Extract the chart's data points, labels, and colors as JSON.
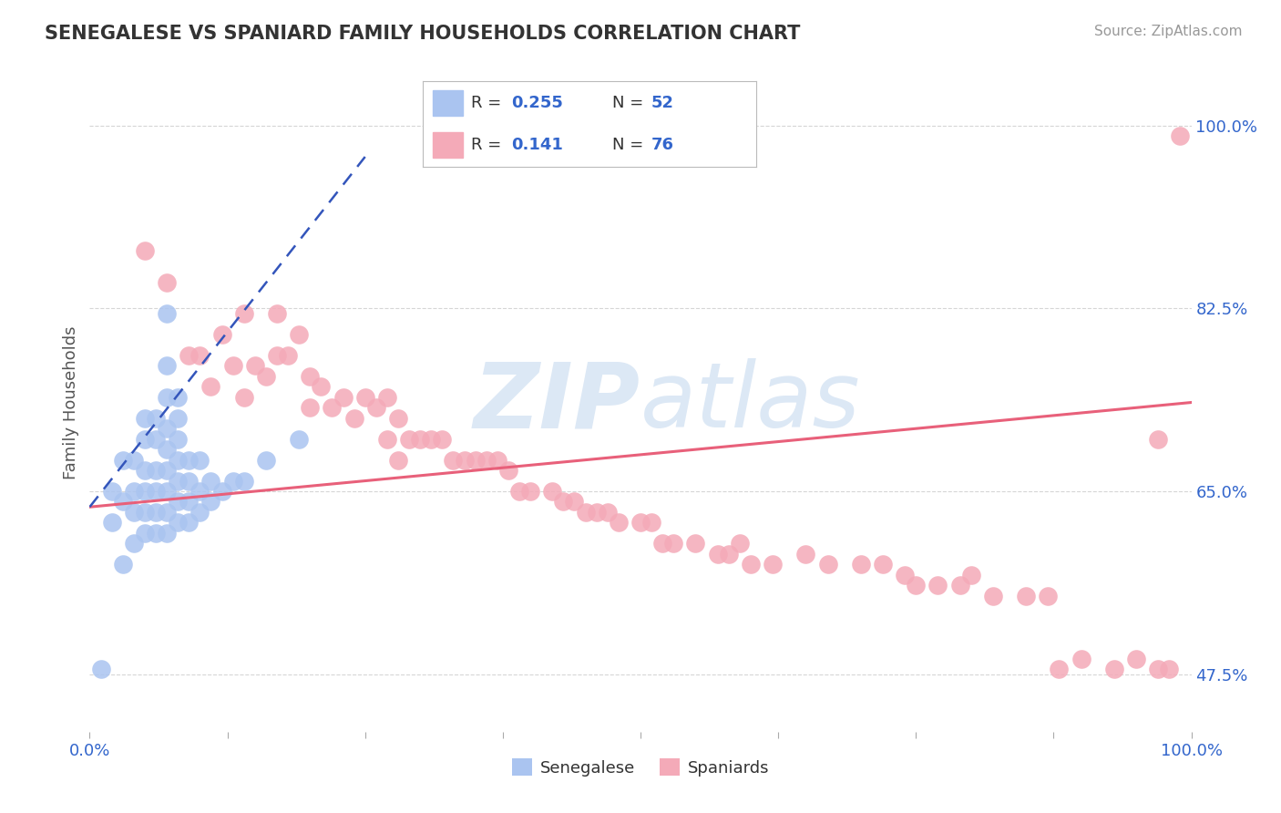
{
  "title": "SENEGALESE VS SPANIARD FAMILY HOUSEHOLDS CORRELATION CHART",
  "source_text": "Source: ZipAtlas.com",
  "ylabel": "Family Households",
  "xlim": [
    0.0,
    1.0
  ],
  "ylim": [
    0.42,
    1.05
  ],
  "senegalese_R": 0.255,
  "senegalese_N": 52,
  "spaniards_R": 0.141,
  "spaniards_N": 76,
  "senegalese_color": "#aac4f0",
  "spaniards_color": "#f4aab8",
  "senegalese_line_color": "#3355bb",
  "spaniards_line_color": "#e8607a",
  "watermark_color": "#dce8f5",
  "background_color": "#ffffff",
  "grid_color": "#cccccc",
  "title_color": "#333333",
  "source_color": "#999999",
  "tick_color": "#3366cc",
  "ylabel_color": "#555555",
  "ytick_positions": [
    0.475,
    0.65,
    0.825,
    1.0
  ],
  "ytick_labels": [
    "47.5%",
    "65.0%",
    "82.5%",
    "100.0%"
  ],
  "senegalese_x": [
    0.01,
    0.02,
    0.02,
    0.03,
    0.03,
    0.03,
    0.04,
    0.04,
    0.04,
    0.04,
    0.05,
    0.05,
    0.05,
    0.05,
    0.05,
    0.05,
    0.06,
    0.06,
    0.06,
    0.06,
    0.06,
    0.06,
    0.07,
    0.07,
    0.07,
    0.07,
    0.07,
    0.07,
    0.07,
    0.07,
    0.07,
    0.08,
    0.08,
    0.08,
    0.08,
    0.08,
    0.08,
    0.08,
    0.09,
    0.09,
    0.09,
    0.09,
    0.1,
    0.1,
    0.1,
    0.11,
    0.11,
    0.12,
    0.13,
    0.14,
    0.16,
    0.19
  ],
  "senegalese_y": [
    0.48,
    0.62,
    0.65,
    0.58,
    0.64,
    0.68,
    0.6,
    0.63,
    0.65,
    0.68,
    0.61,
    0.63,
    0.65,
    0.67,
    0.7,
    0.72,
    0.61,
    0.63,
    0.65,
    0.67,
    0.7,
    0.72,
    0.61,
    0.63,
    0.65,
    0.67,
    0.69,
    0.71,
    0.74,
    0.77,
    0.82,
    0.62,
    0.64,
    0.66,
    0.68,
    0.7,
    0.72,
    0.74,
    0.62,
    0.64,
    0.66,
    0.68,
    0.63,
    0.65,
    0.68,
    0.64,
    0.66,
    0.65,
    0.66,
    0.66,
    0.68,
    0.7
  ],
  "spaniards_x": [
    0.05,
    0.07,
    0.09,
    0.1,
    0.11,
    0.12,
    0.13,
    0.14,
    0.14,
    0.15,
    0.16,
    0.17,
    0.17,
    0.18,
    0.19,
    0.2,
    0.2,
    0.21,
    0.22,
    0.23,
    0.24,
    0.25,
    0.26,
    0.27,
    0.27,
    0.28,
    0.28,
    0.29,
    0.3,
    0.31,
    0.32,
    0.33,
    0.34,
    0.35,
    0.36,
    0.37,
    0.38,
    0.39,
    0.4,
    0.42,
    0.43,
    0.44,
    0.45,
    0.46,
    0.47,
    0.48,
    0.5,
    0.51,
    0.52,
    0.53,
    0.55,
    0.57,
    0.58,
    0.59,
    0.6,
    0.62,
    0.65,
    0.67,
    0.7,
    0.72,
    0.74,
    0.75,
    0.77,
    0.79,
    0.8,
    0.82,
    0.85,
    0.87,
    0.88,
    0.9,
    0.93,
    0.95,
    0.97,
    0.97,
    0.98,
    0.99
  ],
  "spaniards_y": [
    0.88,
    0.85,
    0.78,
    0.78,
    0.75,
    0.8,
    0.77,
    0.82,
    0.74,
    0.77,
    0.76,
    0.82,
    0.78,
    0.78,
    0.8,
    0.76,
    0.73,
    0.75,
    0.73,
    0.74,
    0.72,
    0.74,
    0.73,
    0.74,
    0.7,
    0.72,
    0.68,
    0.7,
    0.7,
    0.7,
    0.7,
    0.68,
    0.68,
    0.68,
    0.68,
    0.68,
    0.67,
    0.65,
    0.65,
    0.65,
    0.64,
    0.64,
    0.63,
    0.63,
    0.63,
    0.62,
    0.62,
    0.62,
    0.6,
    0.6,
    0.6,
    0.59,
    0.59,
    0.6,
    0.58,
    0.58,
    0.59,
    0.58,
    0.58,
    0.58,
    0.57,
    0.56,
    0.56,
    0.56,
    0.57,
    0.55,
    0.55,
    0.55,
    0.48,
    0.49,
    0.48,
    0.49,
    0.48,
    0.7,
    0.48,
    0.99
  ],
  "blue_trend_x": [
    0.0,
    0.25
  ],
  "blue_trend_y": [
    0.635,
    0.97
  ],
  "pink_trend_x": [
    0.0,
    1.0
  ],
  "pink_trend_y": [
    0.635,
    0.735
  ]
}
